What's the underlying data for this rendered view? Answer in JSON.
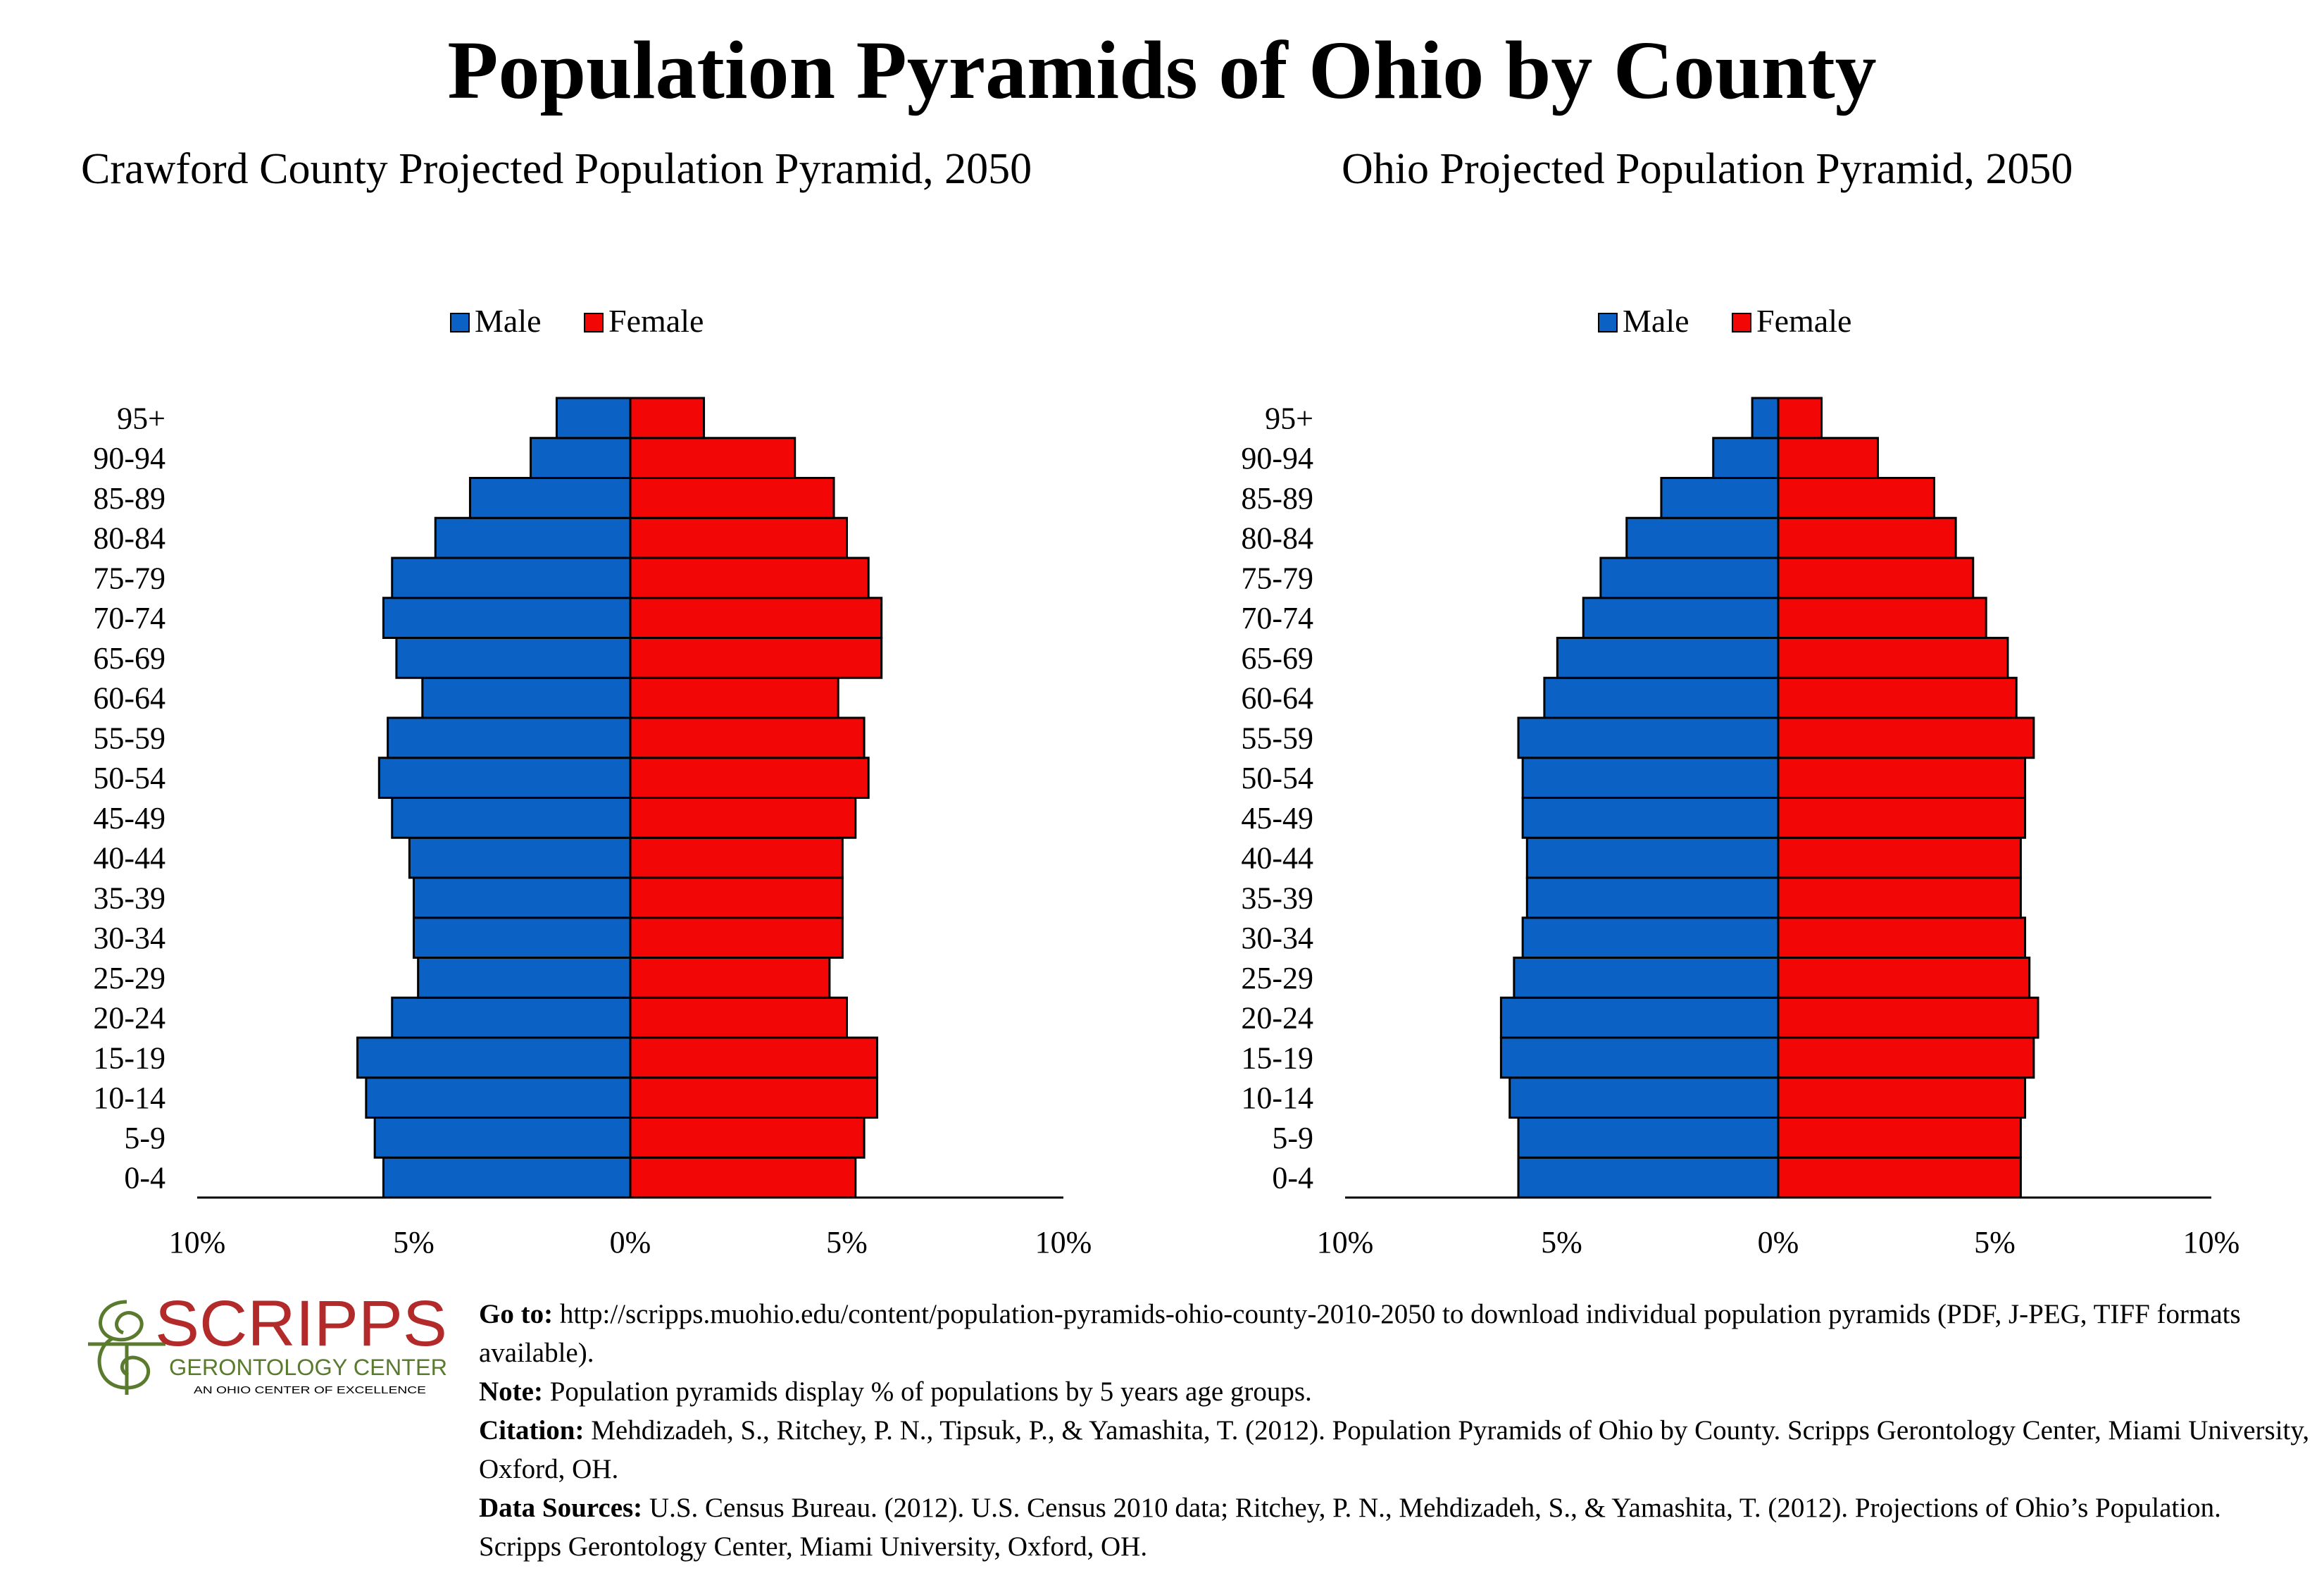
{
  "title": "Population Pyramids of Ohio by County",
  "colors": {
    "male": "#0B62C4",
    "female": "#F20606",
    "logo": "#B22A2A",
    "logo_swirl": "#5A7A2E"
  },
  "chart_data": [
    {
      "type": "bar",
      "title": "Crawford County Projected Population Pyramid, 2050",
      "legend_position": "top-center",
      "categories": [
        "0-4",
        "5-9",
        "10-14",
        "15-19",
        "20-24",
        "25-29",
        "30-34",
        "35-39",
        "40-44",
        "45-49",
        "50-54",
        "55-59",
        "60-64",
        "65-69",
        "70-74",
        "75-79",
        "80-84",
        "85-89",
        "90-94",
        "95+"
      ],
      "series": [
        {
          "name": "Male",
          "values": [
            5.7,
            5.9,
            6.1,
            6.3,
            5.5,
            4.9,
            5.0,
            5.0,
            5.1,
            5.5,
            5.8,
            5.6,
            4.8,
            5.4,
            5.7,
            5.5,
            4.5,
            3.7,
            2.3,
            1.7
          ]
        },
        {
          "name": "Female",
          "values": [
            5.2,
            5.4,
            5.7,
            5.7,
            5.0,
            4.6,
            4.9,
            4.9,
            4.9,
            5.2,
            5.5,
            5.4,
            4.8,
            5.8,
            5.8,
            5.5,
            5.0,
            4.7,
            3.8,
            1.7
          ]
        }
      ],
      "x_ticks": [
        "10%",
        "5%",
        "0%",
        "5%",
        "10%"
      ],
      "xlim": [
        -10,
        10
      ]
    },
    {
      "type": "bar",
      "title": "Ohio Projected Population Pyramid, 2050",
      "legend_position": "top-center",
      "categories": [
        "0-4",
        "5-9",
        "10-14",
        "15-19",
        "20-24",
        "25-29",
        "30-34",
        "35-39",
        "40-44",
        "45-49",
        "50-54",
        "55-59",
        "60-64",
        "65-69",
        "70-74",
        "75-79",
        "80-84",
        "85-89",
        "90-94",
        "95+"
      ],
      "series": [
        {
          "name": "Male",
          "values": [
            6.0,
            6.0,
            6.2,
            6.4,
            6.4,
            6.1,
            5.9,
            5.8,
            5.8,
            5.9,
            5.9,
            6.0,
            5.4,
            5.1,
            4.5,
            4.1,
            3.5,
            2.7,
            1.5,
            0.6
          ]
        },
        {
          "name": "Female",
          "values": [
            5.6,
            5.6,
            5.7,
            5.9,
            6.0,
            5.8,
            5.7,
            5.6,
            5.6,
            5.7,
            5.7,
            5.9,
            5.5,
            5.3,
            4.8,
            4.5,
            4.1,
            3.6,
            2.3,
            1.0
          ]
        }
      ],
      "x_ticks": [
        "10%",
        "5%",
        "0%",
        "5%",
        "10%"
      ],
      "xlim": [
        -10,
        10
      ]
    }
  ],
  "logo": {
    "name": "SCRIPPS",
    "subtitle": "GERONTOLOGY CENTER",
    "tagline": "AN OHIO CENTER OF EXCELLENCE"
  },
  "footer": {
    "goto_label": "Go to:",
    "goto_text": "http://scripps.muohio.edu/content/population-pyramids-ohio-county-2010-2050 to download individual population pyramids (PDF, J-PEG, TIFF formats available).",
    "note_label": "Note:",
    "note_text": "Population pyramids display % of populations by 5 years age groups.",
    "citation_label": "Citation:",
    "citation_text": "Mehdizadeh, S., Ritchey, P. N., Tipsuk, P., & Yamashita, T. (2012). Population Pyramids of Ohio by County. Scripps Gerontology Center, Miami University, Oxford, OH.",
    "sources_label": "Data Sources:",
    "sources_text": "U.S. Census Bureau. (2012). U.S. Census 2010 data; Ritchey, P. N., Mehdizadeh, S., & Yamashita, T. (2012). Projections of Ohio’s Population. Scripps Gerontology Center, Miami University, Oxford, OH."
  }
}
